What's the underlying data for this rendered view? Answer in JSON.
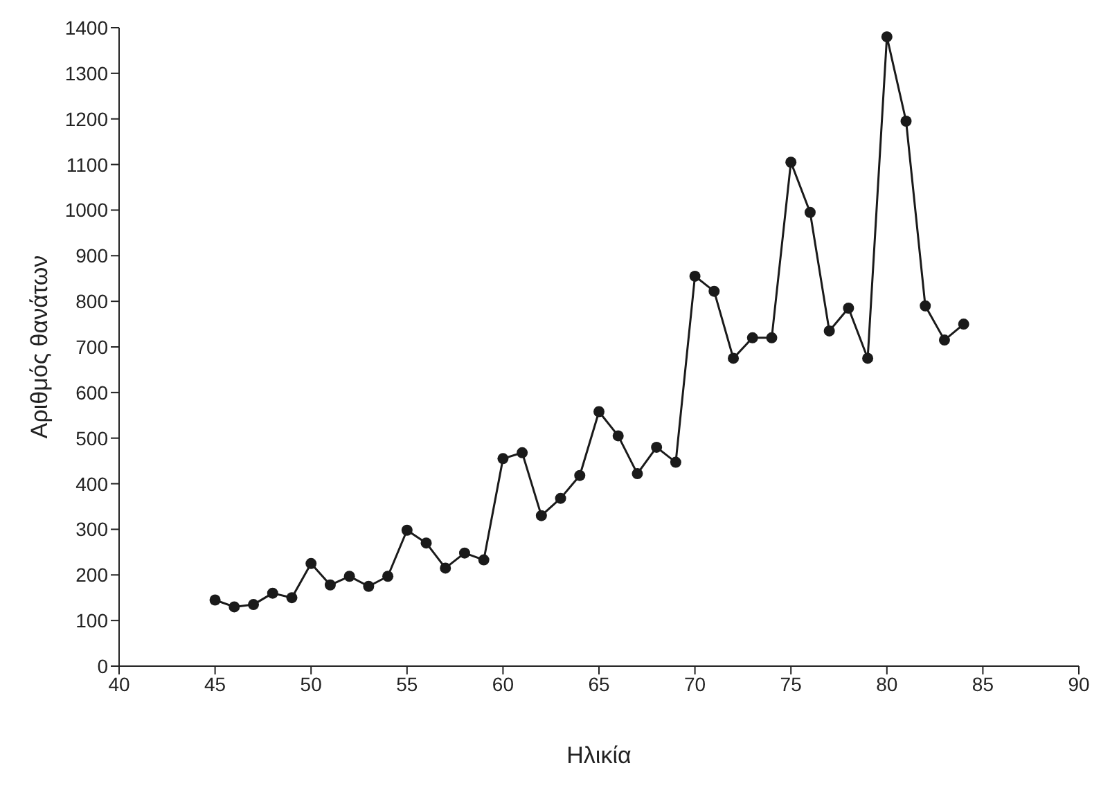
{
  "chart_data": {
    "type": "line",
    "xlabel": "Ηλικία",
    "ylabel": "Αριθμός θανάτων",
    "x": [
      45,
      46,
      47,
      48,
      49,
      50,
      51,
      52,
      53,
      54,
      55,
      56,
      57,
      58,
      59,
      60,
      61,
      62,
      63,
      64,
      65,
      66,
      67,
      68,
      69,
      70,
      71,
      72,
      73,
      74,
      75,
      76,
      77,
      78,
      79,
      80,
      81,
      82,
      83,
      84
    ],
    "series": [
      {
        "color": "#1a1a1a",
        "values": [
          145,
          130,
          135,
          160,
          150,
          225,
          178,
          197,
          175,
          197,
          298,
          270,
          215,
          248,
          233,
          455,
          468,
          330,
          368,
          418,
          558,
          505,
          422,
          480,
          447,
          855,
          822,
          675,
          720,
          720,
          1105,
          995,
          735,
          785,
          675,
          1380,
          1195,
          790,
          715,
          750
        ]
      }
    ],
    "xlim": [
      40,
      90
    ],
    "xticks": [
      40,
      45,
      50,
      55,
      60,
      65,
      70,
      75,
      80,
      85,
      90
    ],
    "ylim": [
      0,
      1400
    ],
    "yticks": [
      0,
      100,
      200,
      300,
      400,
      500,
      600,
      700,
      800,
      900,
      1000,
      1100,
      1200,
      1300,
      1400
    ],
    "grid": false,
    "legend": false,
    "marker": "circle",
    "line_style": "solid"
  }
}
